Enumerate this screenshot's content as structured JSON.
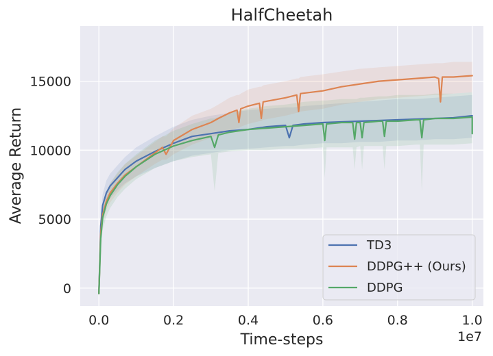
{
  "chart_data": {
    "type": "line",
    "title": "HalfCheetah",
    "xlabel": "Time-steps",
    "ylabel": "Average Return",
    "x_offset_label": "1e7",
    "xlim": [
      -0.05,
      1.03
    ],
    "ylim": [
      -1300,
      19000
    ],
    "xticks": [
      0.0,
      0.2,
      0.4,
      0.6,
      0.8,
      1.0
    ],
    "xtick_labels": [
      "0.0",
      "0.2",
      "0.4",
      "0.6",
      "0.8",
      "1.0"
    ],
    "yticks": [
      0,
      5000,
      10000,
      15000
    ],
    "ytick_labels": [
      "0",
      "5000",
      "10000",
      "15000"
    ],
    "grid": true,
    "legend_position": "lower-right",
    "series": [
      {
        "name": "TD3",
        "color": "#4c72b0",
        "x": [
          0.0,
          0.005,
          0.01,
          0.02,
          0.03,
          0.05,
          0.07,
          0.1,
          0.15,
          0.2,
          0.25,
          0.3,
          0.35,
          0.4,
          0.45,
          0.5,
          0.51,
          0.52,
          0.55,
          0.6,
          0.65,
          0.7,
          0.75,
          0.8,
          0.85,
          0.9,
          0.95,
          1.0
        ],
        "y": [
          -400,
          4500,
          6000,
          6900,
          7400,
          8000,
          8600,
          9200,
          9900,
          10500,
          11000,
          11200,
          11400,
          11500,
          11700,
          11800,
          10900,
          11800,
          11900,
          12000,
          12050,
          12100,
          12150,
          12200,
          12250,
          12300,
          12350,
          12500
        ],
        "band_lower": [
          -400,
          3800,
          5200,
          6000,
          6500,
          7100,
          7600,
          8100,
          8700,
          9200,
          9600,
          9800,
          10000,
          10100,
          10200,
          10300,
          10300,
          10300,
          10400,
          10500,
          10500,
          10600,
          10600,
          10700,
          10700,
          10800,
          10800,
          10900
        ],
        "band_upper": [
          -400,
          5200,
          6800,
          7800,
          8300,
          8900,
          9500,
          10200,
          11000,
          11700,
          12200,
          12500,
          12700,
          12900,
          13000,
          13100,
          13100,
          13100,
          13200,
          13300,
          13400,
          13500,
          13600,
          13700,
          13700,
          13800,
          13900,
          14000
        ]
      },
      {
        "name": "DDPG++ (Ours)",
        "color": "#dd8452",
        "x": [
          0.0,
          0.005,
          0.01,
          0.02,
          0.03,
          0.05,
          0.07,
          0.1,
          0.15,
          0.17,
          0.18,
          0.2,
          0.25,
          0.3,
          0.32,
          0.35,
          0.37,
          0.375,
          0.38,
          0.4,
          0.43,
          0.435,
          0.44,
          0.5,
          0.53,
          0.535,
          0.54,
          0.6,
          0.65,
          0.7,
          0.75,
          0.8,
          0.85,
          0.9,
          0.91,
          0.915,
          0.92,
          0.95,
          1.0
        ],
        "y": [
          -400,
          4000,
          5300,
          6300,
          6900,
          7600,
          8200,
          8800,
          9800,
          10200,
          9700,
          10700,
          11500,
          12000,
          12300,
          12700,
          12900,
          12000,
          13000,
          13200,
          13400,
          12300,
          13500,
          13800,
          14000,
          12800,
          14100,
          14300,
          14600,
          14800,
          15000,
          15100,
          15200,
          15300,
          15200,
          13500,
          15300,
          15300,
          15400
        ],
        "band_lower": [
          -400,
          3500,
          4700,
          5700,
          6200,
          6900,
          7500,
          8100,
          9000,
          9300,
          9300,
          9700,
          10400,
          10900,
          11100,
          11400,
          11600,
          11600,
          11700,
          11900,
          12100,
          12100,
          12200,
          12500,
          12700,
          12700,
          12800,
          13000,
          13300,
          13500,
          13700,
          13800,
          13900,
          14000,
          14000,
          14000,
          14000,
          14100,
          14200
        ],
        "band_upper": [
          -400,
          4600,
          6000,
          7000,
          7600,
          8300,
          9000,
          9600,
          10600,
          11000,
          11000,
          11600,
          12500,
          13000,
          13300,
          13800,
          14000,
          14000,
          14100,
          14400,
          14600,
          14600,
          14700,
          15000,
          15200,
          15200,
          15300,
          15500,
          15700,
          15900,
          16000,
          16100,
          16200,
          16300,
          16300,
          16300,
          16300,
          16400,
          16400
        ]
      },
      {
        "name": "DDPG",
        "color": "#55a868",
        "x": [
          0.0,
          0.005,
          0.01,
          0.02,
          0.03,
          0.05,
          0.07,
          0.1,
          0.15,
          0.2,
          0.25,
          0.3,
          0.31,
          0.32,
          0.35,
          0.4,
          0.45,
          0.5,
          0.55,
          0.6,
          0.6,
          0.605,
          0.61,
          0.65,
          0.68,
          0.685,
          0.69,
          0.7,
          0.7,
          0.705,
          0.71,
          0.75,
          0.76,
          0.765,
          0.77,
          0.8,
          0.85,
          0.86,
          0.865,
          0.87,
          0.9,
          0.95,
          1.0,
          1.0
        ],
        "y": [
          -400,
          3600,
          5100,
          6100,
          6700,
          7500,
          8100,
          8800,
          9700,
          10300,
          10700,
          11000,
          10200,
          11100,
          11300,
          11500,
          11600,
          11700,
          11800,
          11900,
          11900,
          10700,
          11900,
          12000,
          12000,
          10800,
          12000,
          12000,
          12000,
          10900,
          12000,
          12100,
          12100,
          11000,
          12100,
          12100,
          12200,
          12200,
          10900,
          12200,
          12300,
          12300,
          12400,
          11200
        ],
        "band_lower": [
          -400,
          2800,
          4200,
          5200,
          5800,
          6600,
          7200,
          7900,
          8700,
          9200,
          9500,
          9700,
          7000,
          9800,
          9900,
          10000,
          10000,
          10100,
          10100,
          10200,
          10200,
          8000,
          10200,
          10200,
          10200,
          8600,
          10200,
          10300,
          10300,
          8600,
          10300,
          10300,
          10300,
          8600,
          10300,
          10300,
          10400,
          10400,
          7000,
          10400,
          10400,
          10400,
          10500,
          7500
        ],
        "band_upper": [
          -400,
          4400,
          6000,
          7000,
          7600,
          8400,
          9000,
          9700,
          10700,
          11400,
          11900,
          12300,
          12300,
          12400,
          12700,
          13000,
          13200,
          13300,
          13500,
          13600,
          13600,
          13600,
          13600,
          13700,
          13700,
          13700,
          13700,
          13800,
          13800,
          13800,
          13800,
          13900,
          13900,
          13900,
          13900,
          14000,
          14000,
          14000,
          14000,
          14000,
          14100,
          14100,
          14200,
          14200
        ]
      }
    ]
  }
}
